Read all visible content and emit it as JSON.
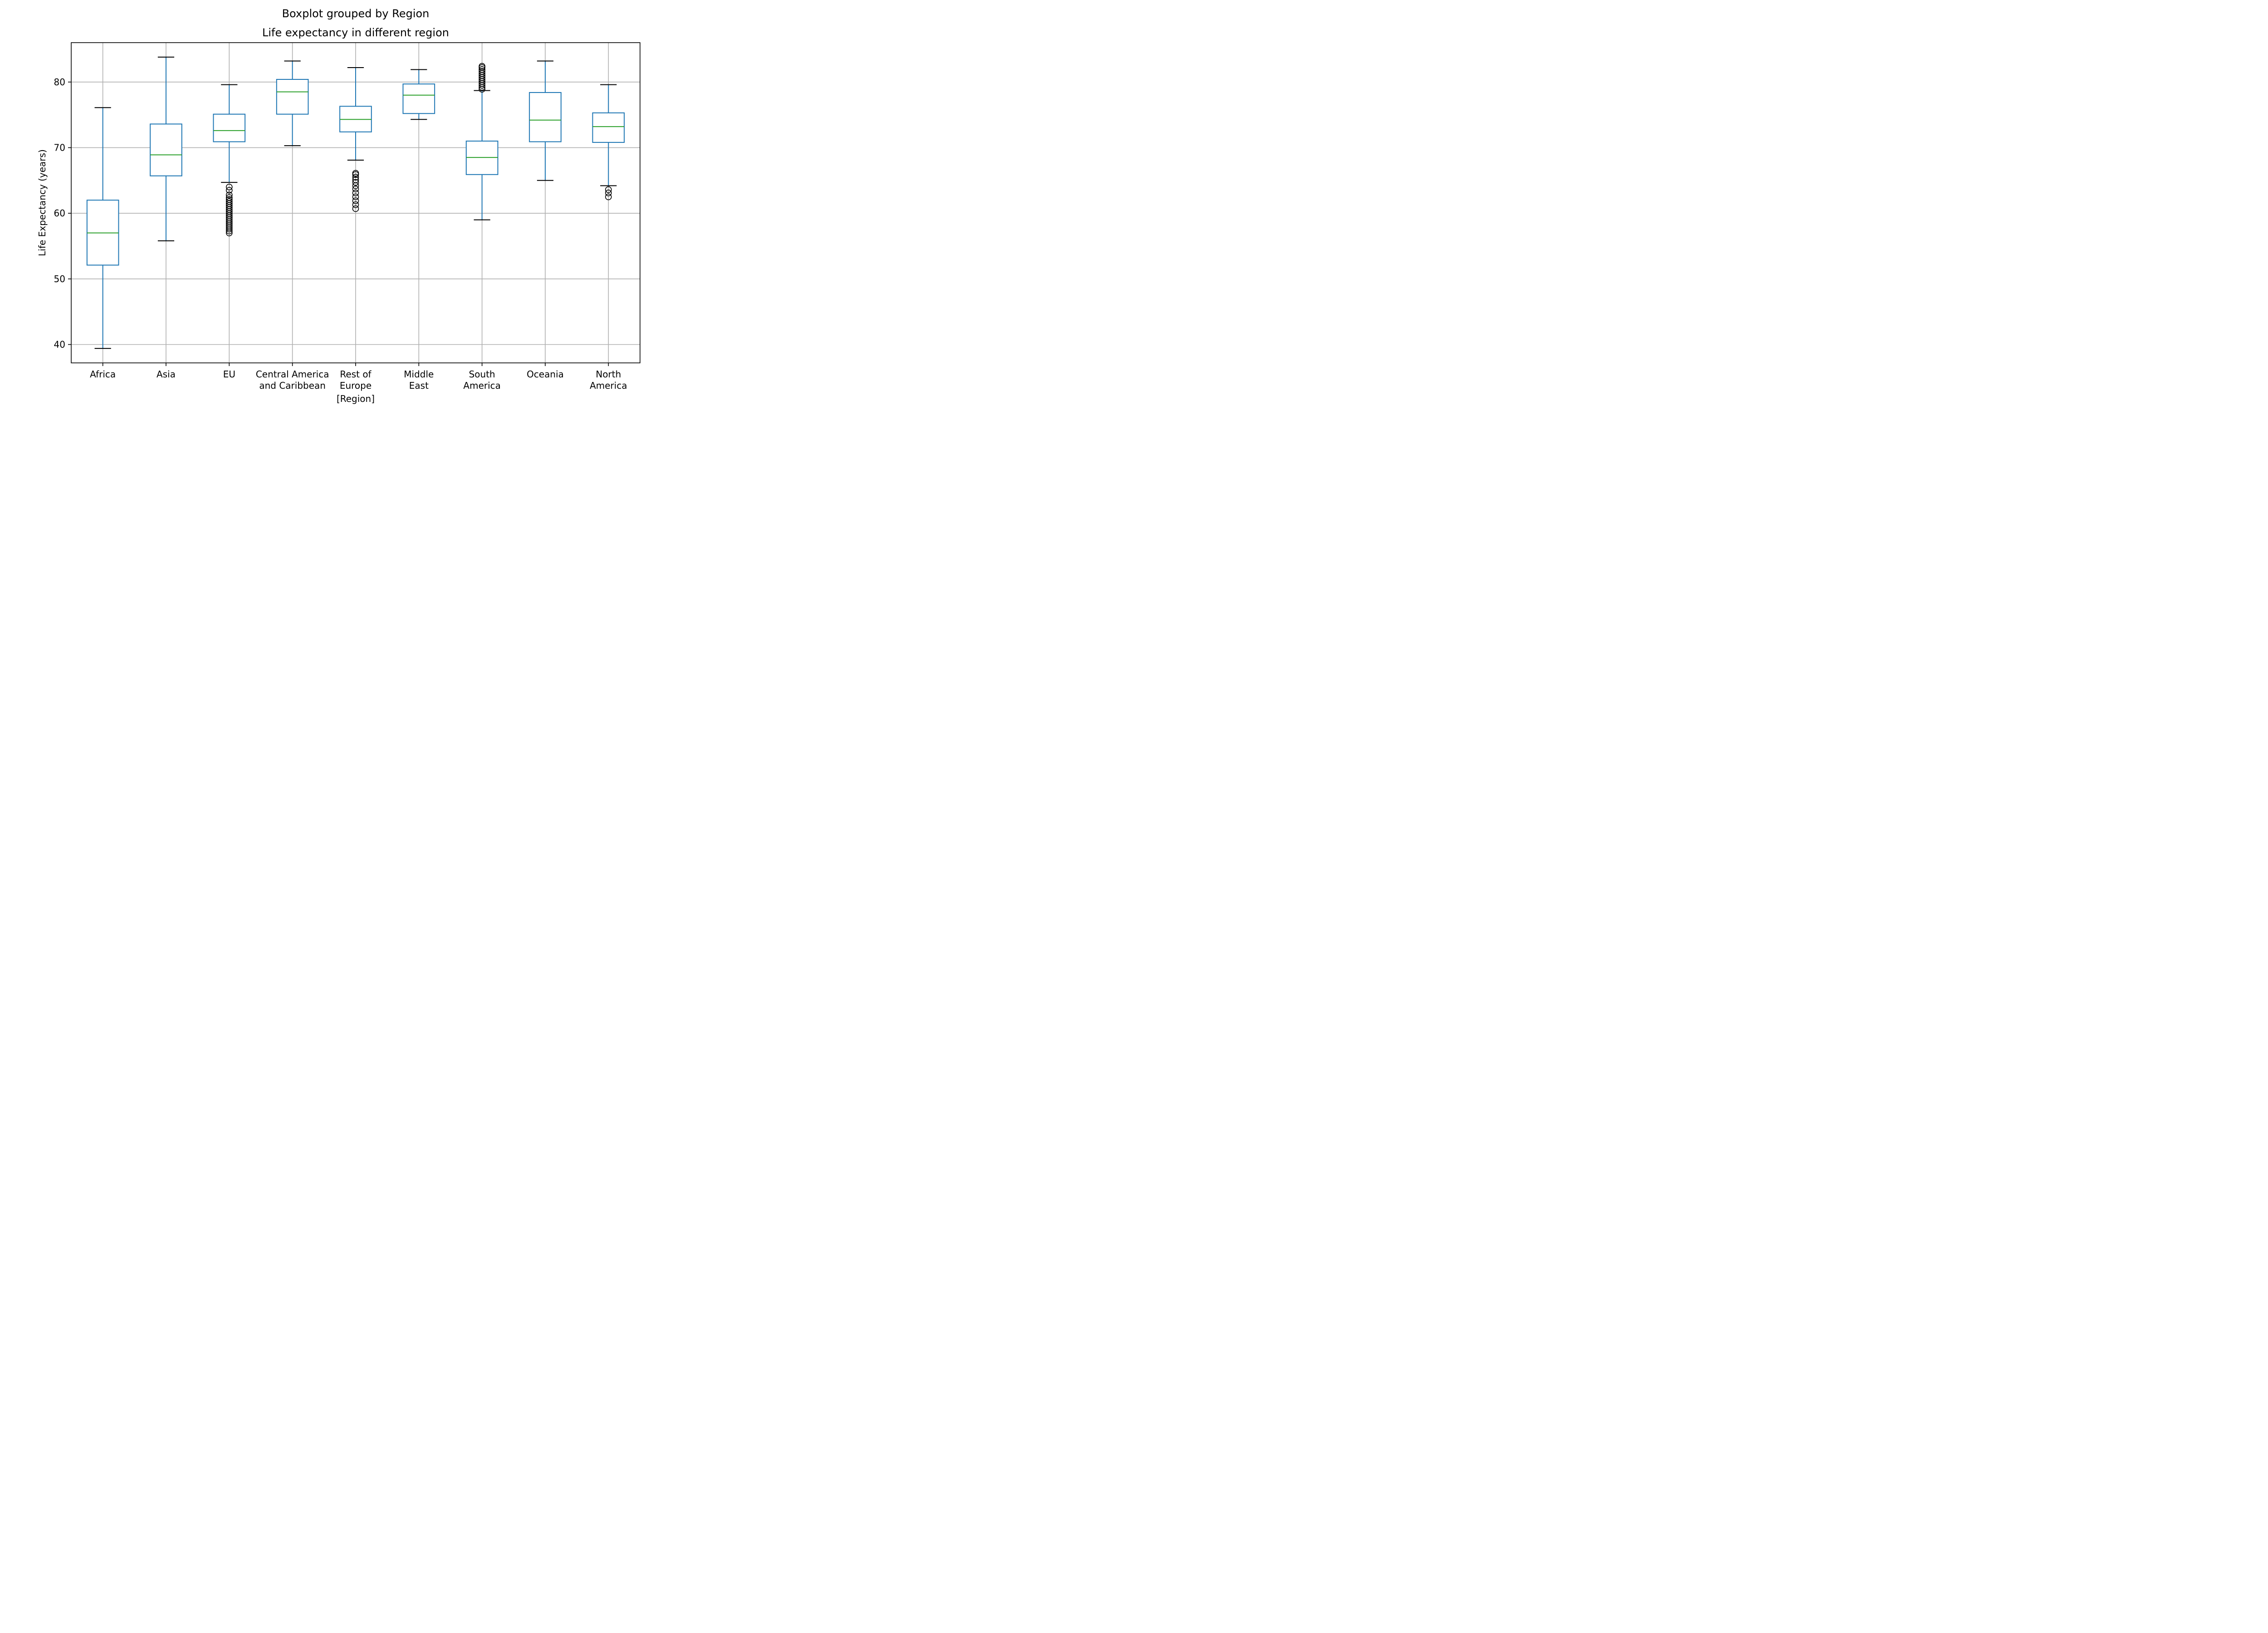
{
  "chart_data": {
    "type": "box",
    "suptitle": "Boxplot grouped by Region",
    "title": "Life expectancy in different region",
    "xlabel": "[Region]",
    "ylabel": "Life Expectancy (years)",
    "ylim": [
      37.2,
      86.0
    ],
    "yticks": [
      40,
      50,
      60,
      70,
      80
    ],
    "grid": true,
    "colors": {
      "box": "#1f77b4",
      "median": "#2ca02c",
      "cap": "#000000",
      "flier": "#000000",
      "grid": "#b0b0b0"
    },
    "categories": [
      {
        "label_lines": [
          "Africa"
        ],
        "whisker_low": 39.4,
        "q1": 52.1,
        "median": 57.0,
        "q3": 62.0,
        "whisker_high": 76.1,
        "fliers": []
      },
      {
        "label_lines": [
          "Asia"
        ],
        "whisker_low": 55.8,
        "q1": 65.7,
        "median": 68.9,
        "q3": 73.6,
        "whisker_high": 83.8,
        "fliers": []
      },
      {
        "label_lines": [
          "EU"
        ],
        "whisker_low": 64.7,
        "q1": 70.9,
        "median": 72.6,
        "q3": 75.1,
        "whisker_high": 79.6,
        "fliers": [
          57.0,
          57.3,
          57.6,
          57.9,
          58.2,
          58.5,
          58.8,
          59.1,
          59.4,
          59.7,
          60.0,
          60.3,
          60.6,
          60.9,
          61.2,
          61.5,
          61.8,
          62.1,
          62.4,
          62.8,
          63.5,
          64.0
        ]
      },
      {
        "label_lines": [
          "Central America",
          "and Caribbean"
        ],
        "whisker_low": 70.3,
        "q1": 75.1,
        "median": 78.5,
        "q3": 80.4,
        "whisker_high": 83.2,
        "fliers": []
      },
      {
        "label_lines": [
          "Rest of",
          "Europe"
        ],
        "whisker_low": 68.1,
        "q1": 72.4,
        "median": 74.3,
        "q3": 76.3,
        "whisker_high": 82.2,
        "fliers": [
          60.7,
          61.3,
          61.9,
          62.5,
          63.1,
          63.7,
          64.2,
          64.7,
          65.1,
          65.5,
          65.9,
          66.1
        ]
      },
      {
        "label_lines": [
          "Middle",
          "East"
        ],
        "whisker_low": 74.3,
        "q1": 75.2,
        "median": 78.0,
        "q3": 79.7,
        "whisker_high": 81.9,
        "fliers": []
      },
      {
        "label_lines": [
          "South",
          "America"
        ],
        "whisker_low": 59.0,
        "q1": 65.9,
        "median": 68.5,
        "q3": 71.0,
        "whisker_high": 78.7,
        "fliers": [
          78.9,
          79.2,
          79.5,
          79.8,
          80.1,
          80.4,
          80.7,
          81.0,
          81.3,
          81.6,
          81.9,
          82.2,
          82.4
        ]
      },
      {
        "label_lines": [
          "Oceania"
        ],
        "whisker_low": 65.0,
        "q1": 70.9,
        "median": 74.2,
        "q3": 78.4,
        "whisker_high": 83.2,
        "fliers": []
      },
      {
        "label_lines": [
          "North",
          "America"
        ],
        "whisker_low": 64.2,
        "q1": 70.8,
        "median": 73.2,
        "q3": 75.3,
        "whisker_high": 79.6,
        "fliers": [
          62.5,
          63.1,
          63.6
        ]
      }
    ]
  }
}
